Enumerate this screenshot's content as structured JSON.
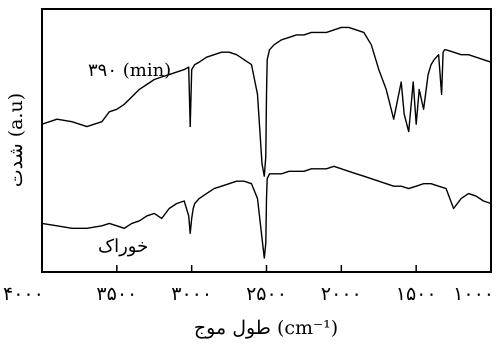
{
  "chart_data": {
    "type": "line",
    "xlabel": "طول موج (cm⁻¹)",
    "ylabel": "شدت (a.u)",
    "x_reversed": true,
    "xlim": [
      4000,
      1000
    ],
    "ticks": [
      {
        "value": 4000,
        "label": "۴۰۰۰"
      },
      {
        "value": 3500,
        "label": "۳۵۰۰"
      },
      {
        "value": 3000,
        "label": "۳۰۰۰"
      },
      {
        "value": 2500,
        "label": "۲۵۰۰"
      },
      {
        "value": 2000,
        "label": "۲۰۰۰"
      },
      {
        "value": 1500,
        "label": "۱۵۰۰"
      },
      {
        "value": 1000,
        "label": "۱۰۰۰"
      }
    ],
    "ylim": [
      0,
      100
    ],
    "grid": false,
    "series": [
      {
        "name": "۳۹۰ (min)",
        "x": [
          4000,
          3900,
          3800,
          3700,
          3600,
          3550,
          3500,
          3450,
          3400,
          3350,
          3300,
          3250,
          3200,
          3150,
          3100,
          3050,
          3020,
          3010,
          3000,
          2990,
          2980,
          2950,
          2900,
          2850,
          2800,
          2750,
          2700,
          2650,
          2600,
          2560,
          2530,
          2515,
          2505,
          2500,
          2495,
          2480,
          2450,
          2400,
          2350,
          2300,
          2250,
          2200,
          2150,
          2100,
          2050,
          2000,
          1950,
          1900,
          1850,
          1800,
          1750,
          1700,
          1650,
          1600,
          1580,
          1550,
          1520,
          1500,
          1480,
          1450,
          1420,
          1400,
          1380,
          1350,
          1330,
          1320,
          1310,
          1300,
          1250,
          1200,
          1150,
          1100,
          1050,
          1000
        ],
        "values": [
          58,
          60,
          59,
          57,
          59,
          63,
          64,
          66,
          69,
          72,
          74,
          76,
          77,
          78,
          79,
          80,
          81,
          57,
          80,
          81,
          82,
          83,
          85,
          86,
          87,
          87,
          86,
          84,
          82,
          70,
          42,
          37,
          45,
          70,
          84,
          88,
          90,
          92,
          93,
          94,
          94,
          95,
          95,
          95,
          96,
          97,
          97,
          96,
          95,
          90,
          80,
          72,
          60,
          75,
          62,
          55,
          75,
          58,
          72,
          64,
          78,
          82,
          84,
          86,
          70,
          87,
          88,
          88,
          87,
          86,
          86,
          85,
          84,
          83
        ]
      },
      {
        "name": "خوراک",
        "x": [
          4000,
          3900,
          3800,
          3700,
          3600,
          3550,
          3500,
          3450,
          3400,
          3350,
          3300,
          3250,
          3200,
          3150,
          3100,
          3050,
          3020,
          3010,
          3000,
          2990,
          2980,
          2950,
          2900,
          2850,
          2800,
          2750,
          2700,
          2650,
          2600,
          2560,
          2530,
          2515,
          2505,
          2500,
          2495,
          2480,
          2450,
          2400,
          2350,
          2300,
          2250,
          2200,
          2150,
          2100,
          2050,
          2000,
          1950,
          1900,
          1850,
          1800,
          1750,
          1700,
          1650,
          1600,
          1550,
          1500,
          1450,
          1400,
          1350,
          1300,
          1250,
          1200,
          1150,
          1100,
          1050,
          1000
        ],
        "values": [
          18,
          17,
          16,
          16,
          17,
          18,
          17,
          16,
          18,
          19,
          21,
          22,
          20,
          24,
          26,
          27,
          21,
          14,
          20,
          24,
          26,
          28,
          30,
          32,
          33,
          34,
          35,
          35,
          34,
          28,
          12,
          4,
          10,
          28,
          36,
          38,
          38,
          38,
          39,
          39,
          39,
          40,
          40,
          40,
          41,
          40,
          39,
          38,
          37,
          36,
          35,
          34,
          33,
          33,
          32,
          33,
          34,
          34,
          33,
          32,
          24,
          28,
          30,
          29,
          27,
          26
        ]
      }
    ]
  }
}
